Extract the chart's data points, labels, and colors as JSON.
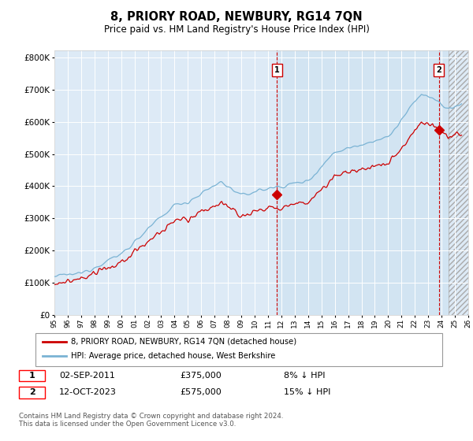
{
  "title": "8, PRIORY ROAD, NEWBURY, RG14 7QN",
  "subtitle": "Price paid vs. HM Land Registry's House Price Index (HPI)",
  "legend_line1": "8, PRIORY ROAD, NEWBURY, RG14 7QN (detached house)",
  "legend_line2": "HPI: Average price, detached house, West Berkshire",
  "annotation1_date": "02-SEP-2011",
  "annotation1_price": "£375,000",
  "annotation1_hpi": "8% ↓ HPI",
  "annotation1_year": 2011.67,
  "annotation1_val": 375000,
  "annotation2_date": "12-OCT-2023",
  "annotation2_price": "£575,000",
  "annotation2_hpi": "15% ↓ HPI",
  "annotation2_year": 2023.79,
  "annotation2_val": 575000,
  "footer": "Contains HM Land Registry data © Crown copyright and database right 2024.\nThis data is licensed under the Open Government Licence v3.0.",
  "hpi_color": "#7ab3d4",
  "price_color": "#cc0000",
  "highlight_color": "#ddeaf6",
  "background_color": "#ddeaf6",
  "ylim_max": 800000,
  "xlim_start": 1995,
  "xlim_end": 2026
}
